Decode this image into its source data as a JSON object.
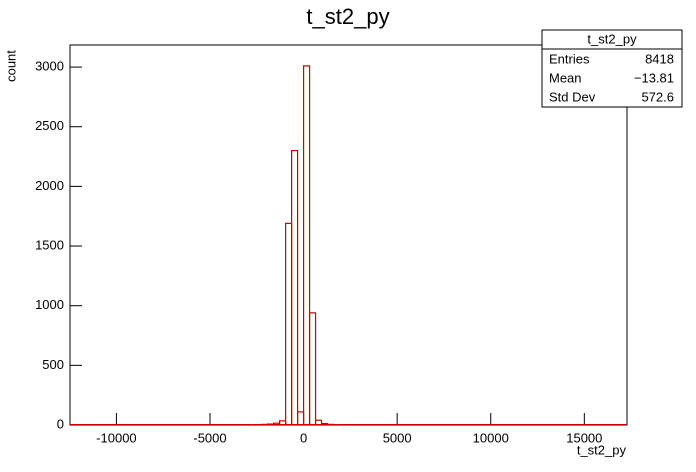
{
  "chart_data": {
    "type": "histogram",
    "title": "t_st2_py",
    "x_label": "t_st2_py",
    "y_label": "count",
    "bins": [
      -2880,
      -2560,
      -2240,
      -1920,
      -1600,
      -1280,
      -960,
      -640,
      -320,
      0,
      320,
      640,
      960,
      1280,
      1600,
      1920
    ],
    "values": [
      1,
      3,
      5,
      8,
      15,
      35,
      1690,
      2300,
      110,
      3010,
      940,
      40,
      12,
      5,
      2
    ],
    "color": "#cc0000",
    "xlim": [
      -12480,
      17280
    ],
    "xticks": [
      -10000,
      -5000,
      0,
      5000,
      10000,
      15000
    ],
    "ylim": [
      0,
      3185
    ],
    "yticks": [
      0,
      500,
      1000,
      1500,
      2000,
      2500,
      3000
    ],
    "stats": {
      "title": "t_st2_py",
      "rows": [
        [
          "Entries",
          "8418"
        ],
        [
          "Mean",
          "−13.81"
        ],
        [
          "Std Dev",
          "572.6"
        ]
      ]
    }
  }
}
